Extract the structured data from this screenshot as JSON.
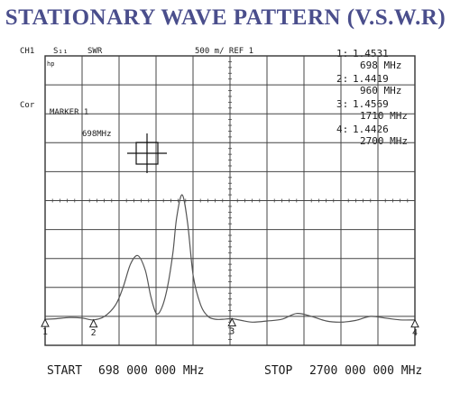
{
  "title": "STATIONARY WAVE PATTERN (V.S.W.R)",
  "header": {
    "channel": "CH1",
    "param": "S₁₁",
    "format": "SWR",
    "scale": "500 m/ REF 1",
    "hold_label": "hp"
  },
  "side_label": "Cor",
  "marker_title": "MARKER 1",
  "marker_freq": "698MHz",
  "markers": [
    {
      "id": "1:",
      "swr": "1.4531",
      "freq": "698 MHz"
    },
    {
      "id": "2:",
      "swr": "1.4419",
      "freq": "960 MHz"
    },
    {
      "id": "3:",
      "swr": "1.4569",
      "freq": "1710 MHz"
    },
    {
      "id": "4:",
      "swr": "1.4426",
      "freq": "2700 MHz"
    }
  ],
  "footer": {
    "start_label": "START",
    "start_value": "698 000 000 MHz",
    "stop_label": "STOP",
    "stop_value": "2700 000 000 MHz"
  },
  "chart_data": {
    "type": "line",
    "xlabel": "",
    "ylabel": "",
    "xlim": [
      698,
      2700
    ],
    "ylim": [
      1,
      6
    ],
    "grid": true,
    "markers_at_mhz": [
      698,
      960,
      1710,
      2700
    ],
    "series": [
      {
        "x": [
          698,
          760,
          830,
          900,
          960,
          1020,
          1080,
          1120,
          1160,
          1200,
          1240,
          1270,
          1300,
          1330,
          1360,
          1390,
          1410,
          1440,
          1470,
          1500,
          1540,
          1580,
          1620,
          1660,
          1710,
          1760,
          1820,
          1900,
          1980,
          2060,
          2140,
          2220,
          2300,
          2380,
          2460,
          2540,
          2620,
          2700
        ],
        "y": [
          1.45,
          1.46,
          1.48,
          1.47,
          1.44,
          1.5,
          1.7,
          2.0,
          2.4,
          2.55,
          2.3,
          1.85,
          1.55,
          1.65,
          2.0,
          2.6,
          3.2,
          3.6,
          3.1,
          2.2,
          1.7,
          1.5,
          1.45,
          1.45,
          1.46,
          1.43,
          1.4,
          1.42,
          1.45,
          1.55,
          1.5,
          1.42,
          1.4,
          1.43,
          1.5,
          1.47,
          1.44,
          1.44
        ]
      }
    ]
  }
}
